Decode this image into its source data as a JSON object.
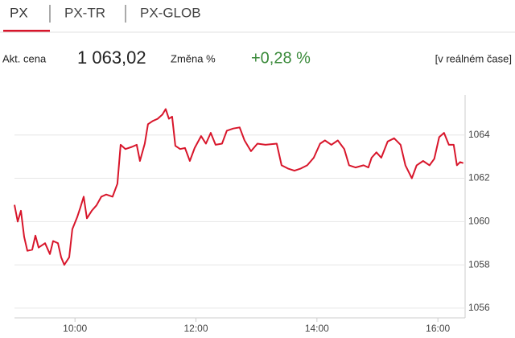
{
  "tabs": [
    "PX",
    "PX-TR",
    "PX-GLOB"
  ],
  "quote": {
    "price_label": "Akt. cena",
    "price": "1 063,02",
    "change_label": "Změna %",
    "change": "+0,28 %",
    "realtime": "[v reálném čase]"
  },
  "chart_data": {
    "type": "line",
    "color": "#d8162b",
    "grid": true,
    "x": [
      9.0,
      9.053,
      9.106,
      9.16,
      9.213,
      9.293,
      9.346,
      9.399,
      9.505,
      9.585,
      9.638,
      9.718,
      9.771,
      9.824,
      9.904,
      9.957,
      10.037,
      10.09,
      10.144,
      10.197,
      10.277,
      10.356,
      10.436,
      10.516,
      10.622,
      10.702,
      10.755,
      10.835,
      10.941,
      11.021,
      11.074,
      11.154,
      11.207,
      11.287,
      11.367,
      11.447,
      11.5,
      11.553,
      11.606,
      11.66,
      11.739,
      11.819,
      11.899,
      11.979,
      12.085,
      12.165,
      12.245,
      12.324,
      12.431,
      12.511,
      12.617,
      12.723,
      12.803,
      12.91,
      13.016,
      13.149,
      13.335,
      13.415,
      13.521,
      13.628,
      13.734,
      13.84,
      13.947,
      14.053,
      14.133,
      14.239,
      14.346,
      14.452,
      14.532,
      14.638,
      14.771,
      14.851,
      14.904,
      14.984,
      15.064,
      15.17,
      15.277,
      15.383,
      15.463,
      15.569,
      15.649,
      15.755,
      15.862,
      15.941,
      16.021,
      16.101,
      16.181,
      16.261,
      16.314,
      16.367,
      16.42
    ],
    "values": [
      1060.77,
      1060.0,
      1060.5,
      1059.3,
      1058.65,
      1058.7,
      1059.35,
      1058.8,
      1059.0,
      1058.5,
      1059.1,
      1059.0,
      1058.35,
      1058.0,
      1058.35,
      1059.65,
      1060.2,
      1060.65,
      1061.15,
      1060.15,
      1060.5,
      1060.75,
      1061.15,
      1061.25,
      1061.15,
      1061.75,
      1063.55,
      1063.35,
      1063.45,
      1063.55,
      1062.8,
      1063.6,
      1064.5,
      1064.65,
      1064.75,
      1064.95,
      1065.2,
      1064.75,
      1064.85,
      1063.5,
      1063.35,
      1063.4,
      1062.8,
      1063.4,
      1063.95,
      1063.6,
      1064.1,
      1063.55,
      1063.6,
      1064.2,
      1064.3,
      1064.35,
      1063.75,
      1063.25,
      1063.6,
      1063.55,
      1063.6,
      1062.6,
      1062.45,
      1062.35,
      1062.45,
      1062.6,
      1062.95,
      1063.6,
      1063.75,
      1063.55,
      1063.75,
      1063.35,
      1062.6,
      1062.5,
      1062.6,
      1062.5,
      1062.95,
      1063.2,
      1062.95,
      1063.7,
      1063.85,
      1063.55,
      1062.6,
      1062.0,
      1062.6,
      1062.8,
      1062.6,
      1062.9,
      1063.9,
      1064.1,
      1063.55,
      1063.55,
      1062.6,
      1062.75,
      1062.7
    ],
    "xlim": [
      9,
      16.45
    ],
    "xticks": [
      {
        "value": 10,
        "label": "10:00"
      },
      {
        "value": 12,
        "label": "12:00"
      },
      {
        "value": 14,
        "label": "14:00"
      },
      {
        "value": 16,
        "label": "16:00"
      }
    ],
    "ylim": [
      1055.55,
      1065.85
    ],
    "yticks": [
      1056,
      1058,
      1060,
      1062,
      1064
    ]
  }
}
